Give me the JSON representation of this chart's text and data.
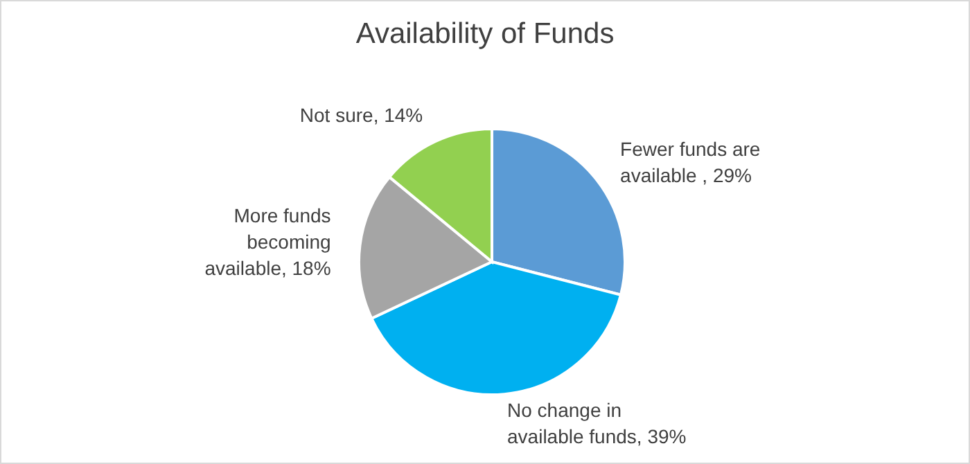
{
  "chart_data": {
    "type": "pie",
    "title": "Availability of Funds",
    "categories": [
      "Fewer funds are available ",
      "No change in available funds",
      "More funds becoming available",
      "Not sure"
    ],
    "values": [
      29,
      39,
      18,
      14
    ],
    "colors": [
      "#5b9bd5",
      "#00b0f0",
      "#a5a5a5",
      "#92d050"
    ],
    "value_labels": [
      "29%",
      "39%",
      "18%",
      "14%"
    ],
    "legend": false
  }
}
